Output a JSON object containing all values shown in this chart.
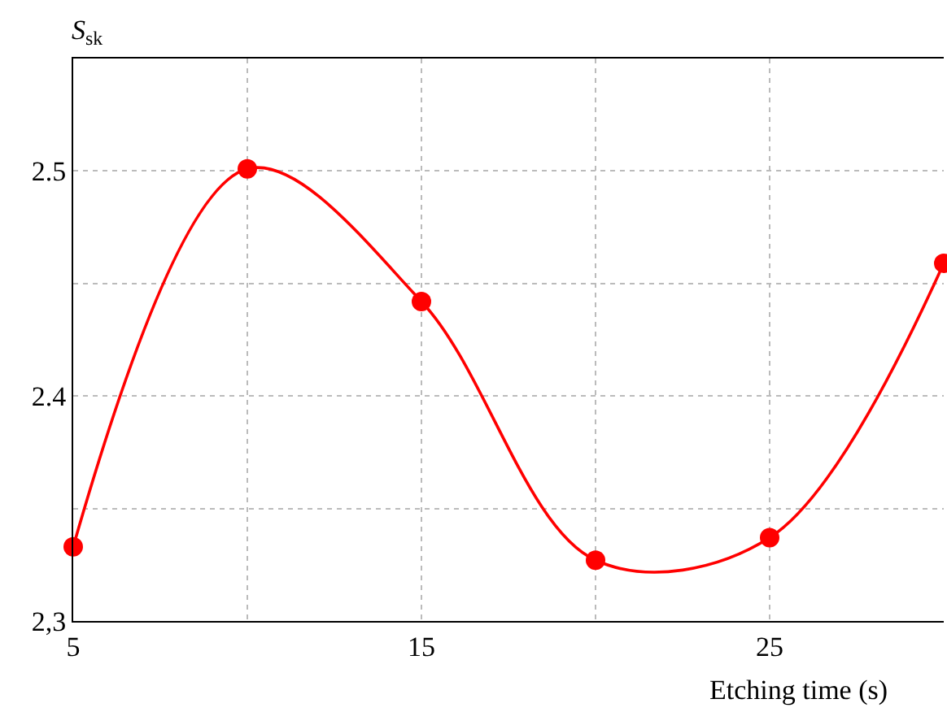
{
  "chart_data": {
    "type": "line",
    "xlabel": "Etching time (s)",
    "ylabel": "S$_{sk}$",
    "x": [
      5,
      10,
      15,
      20,
      25,
      30
    ],
    "series": [
      {
        "color": "#ff0000",
        "values": [
          2.333,
          2.501,
          2.442,
          2.327,
          2.337,
          2.459
        ]
      }
    ],
    "xlim": [
      5,
      30
    ],
    "xticks": [
      5,
      {
        "value": 10,
        "label": null
      },
      15,
      {
        "value": 20,
        "label": null
      },
      25,
      {
        "value": 30,
        "label": null
      }
    ],
    "ylim": [
      2.3,
      2.55
    ],
    "yticks": [
      {
        "value": 2.3,
        "label": "2,3"
      },
      {
        "value": 2.35,
        "label": null
      },
      2.4,
      {
        "value": 2.45,
        "label": null
      },
      2.5
    ],
    "grid": true,
    "marker": "circle",
    "line_style": "solid"
  }
}
